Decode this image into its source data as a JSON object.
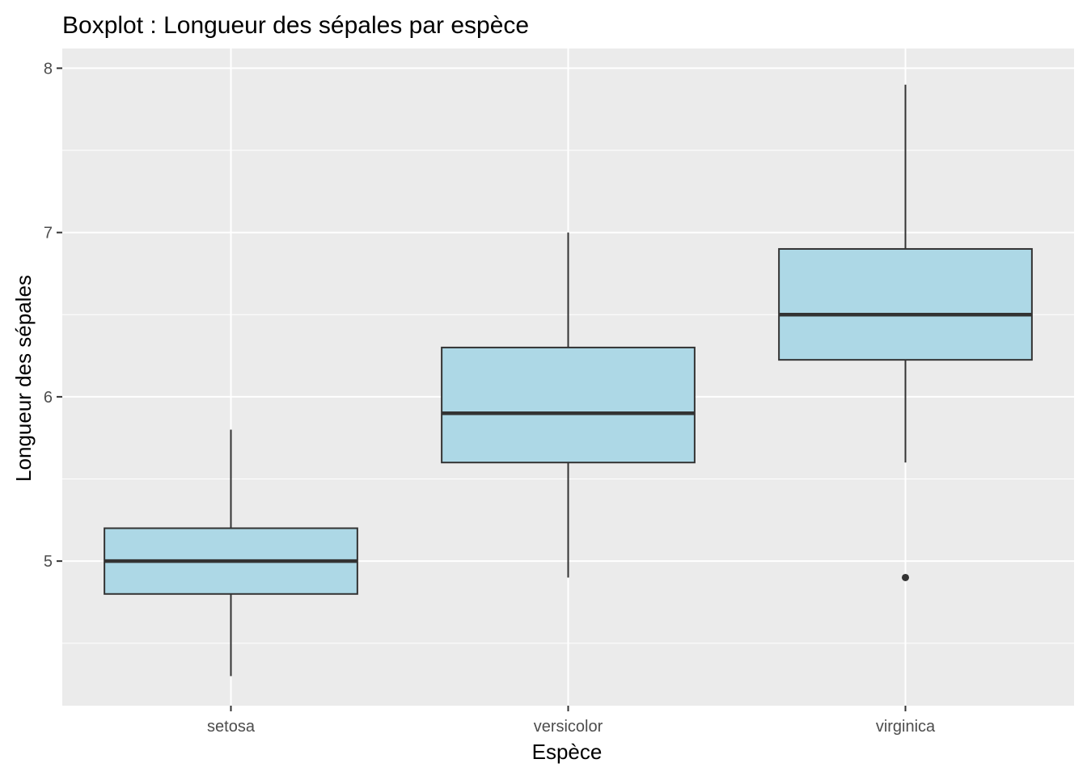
{
  "chart_data": {
    "type": "boxplot",
    "title": "Boxplot : Longueur des sépales par espèce",
    "xlabel": "Espèce",
    "ylabel": "Longueur des sépales",
    "ylim": [
      4.12,
      8.12
    ],
    "yticks": [
      5,
      6,
      7,
      8
    ],
    "grid": true,
    "colors": {
      "panel": "#ebebeb",
      "grid": "#ffffff",
      "box_fill": "#add8e6",
      "box_stroke": "#333333",
      "tick": "#333333"
    },
    "categories": [
      "setosa",
      "versicolor",
      "virginica"
    ],
    "boxes": [
      {
        "category": "setosa",
        "whisker_low": 4.3,
        "q1": 4.8,
        "median": 5.0,
        "q3": 5.2,
        "whisker_high": 5.8,
        "outliers": []
      },
      {
        "category": "versicolor",
        "whisker_low": 4.9,
        "q1": 5.6,
        "median": 5.9,
        "q3": 6.3,
        "whisker_high": 7.0,
        "outliers": []
      },
      {
        "category": "virginica",
        "whisker_low": 5.6,
        "q1": 6.225,
        "median": 6.5,
        "q3": 6.9,
        "whisker_high": 7.9,
        "outliers": [
          4.9
        ]
      }
    ]
  }
}
